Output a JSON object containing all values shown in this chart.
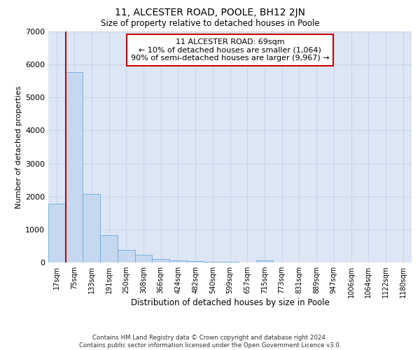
{
  "title": "11, ALCESTER ROAD, POOLE, BH12 2JN",
  "subtitle": "Size of property relative to detached houses in Poole",
  "xlabel": "Distribution of detached houses by size in Poole",
  "ylabel": "Number of detached properties",
  "footer_line1": "Contains HM Land Registry data © Crown copyright and database right 2024.",
  "footer_line2": "Contains public sector information licensed under the Open Government Licence v3.0.",
  "bar_labels": [
    "17sqm",
    "75sqm",
    "133sqm",
    "191sqm",
    "250sqm",
    "308sqm",
    "366sqm",
    "424sqm",
    "482sqm",
    "540sqm",
    "599sqm",
    "657sqm",
    "715sqm",
    "773sqm",
    "831sqm",
    "889sqm",
    "947sqm",
    "1006sqm",
    "1064sqm",
    "1122sqm",
    "1180sqm"
  ],
  "bar_values": [
    1780,
    5780,
    2080,
    820,
    380,
    230,
    115,
    55,
    50,
    25,
    12,
    8,
    60,
    4,
    3,
    3,
    2,
    2,
    1,
    1,
    1
  ],
  "bar_color": "#c5d8f0",
  "bar_edge_color": "#6baed6",
  "grid_color": "#c8d4e8",
  "background_color": "#dde6f5",
  "vline_color": "#cc0000",
  "annotation_text": "11 ALCESTER ROAD: 69sqm\n← 10% of detached houses are smaller (1,064)\n90% of semi-detached houses are larger (9,967) →",
  "annotation_box_facecolor": "#ffffff",
  "annotation_box_edgecolor": "#cc0000",
  "ylim": [
    0,
    7000
  ],
  "yticks": [
    0,
    1000,
    2000,
    3000,
    4000,
    5000,
    6000,
    7000
  ]
}
